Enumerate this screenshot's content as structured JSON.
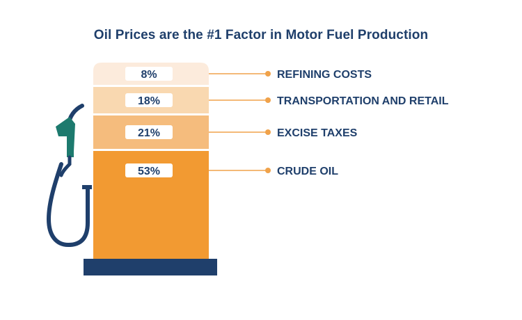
{
  "title": "Oil Prices are the #1 Factor in Motor Fuel Production",
  "colors": {
    "navy": "#1f3f6b",
    "teal": "#1d7a6e",
    "accent_line": "#f0a24a",
    "crude_oil": "#f29a32",
    "excise_taxes": "#f5bc7d",
    "transportation_and_retail": "#f9d8b0",
    "refining_costs": "#fcebdc"
  },
  "chart_data": {
    "type": "bar",
    "stacked": true,
    "title": "Oil Prices are the #1 Factor in Motor Fuel Production",
    "categories": [
      "REFINING COSTS",
      "TRANSPORTATION AND RETAIL",
      "EXCISE TAXES",
      "CRUDE OIL"
    ],
    "values": [
      8,
      18,
      21,
      53
    ],
    "value_labels": [
      "8%",
      "18%",
      "21%",
      "53%"
    ],
    "unit": "%",
    "ylim": [
      0,
      100
    ],
    "grid": false,
    "legend": "right"
  },
  "icons": {
    "pump": "fuel-pump-icon",
    "nozzle": "fuel-nozzle-icon"
  }
}
